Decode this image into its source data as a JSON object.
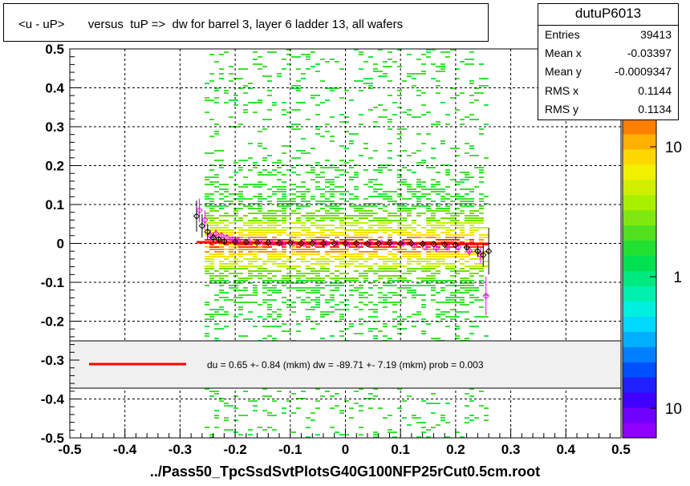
{
  "title": "<u - uP>       versus  tuP =>  dw for barrel 3, layer 6 ladder 13, all wafers",
  "stats": {
    "name": "dutuP6013",
    "rows": [
      {
        "key": "Entries",
        "value": "39413"
      },
      {
        "key": "Mean x",
        "value": "-0.03397"
      },
      {
        "key": "Mean y",
        "value": "-0.0009347"
      },
      {
        "key": "RMS x",
        "value": "0.1144"
      },
      {
        "key": "RMS y",
        "value": "0.1134"
      }
    ]
  },
  "fit_legend": "du =     0.65 +-  0.84 (mkm) dw =  -89.71 +-  7.19 (mkm) prob = 0.003",
  "x_title": "../Pass50_TpcSsdSvtPlotsG40G100NFP25rCut0.5cm.root",
  "chart_data": {
    "type": "heatmap",
    "xlim": [
      -0.5,
      0.5
    ],
    "ylim": [
      -0.5,
      0.5
    ],
    "x_ticks": [
      "-0.5",
      "-0.4",
      "-0.3",
      "-0.2",
      "-0.1",
      "0",
      "0.1",
      "0.2",
      "0.3",
      "0.4",
      "0.5"
    ],
    "y_ticks": [
      "-0.5",
      "-0.4",
      "-0.3",
      "-0.2",
      "-0.1",
      "0",
      "0.1",
      "0.2",
      "0.3",
      "0.4",
      "0.5"
    ],
    "grid": true,
    "colorbar_labels": [
      "10",
      "1",
      "10"
    ],
    "fit_line": {
      "x": [
        -0.27,
        0.26
      ],
      "y": [
        0.003,
        -0.001
      ],
      "color": "#ff0000"
    },
    "profile_black": {
      "x": [
        -0.27,
        -0.26,
        -0.25,
        -0.24,
        -0.23,
        -0.22,
        -0.2,
        -0.18,
        -0.16,
        -0.14,
        -0.12,
        -0.1,
        -0.08,
        -0.06,
        -0.04,
        -0.02,
        0.0,
        0.02,
        0.04,
        0.06,
        0.08,
        0.1,
        0.12,
        0.14,
        0.16,
        0.18,
        0.2,
        0.22,
        0.24,
        0.25,
        0.26
      ],
      "y": [
        0.07,
        0.045,
        0.03,
        0.015,
        0.01,
        0.005,
        0.004,
        0.003,
        0.002,
        0.002,
        0.001,
        0.001,
        0.0,
        0.0,
        0.0,
        0.0,
        0.0,
        0.0,
        -0.001,
        0.0,
        0.001,
        0.0,
        0.0,
        -0.001,
        -0.002,
        -0.003,
        -0.004,
        -0.01,
        -0.02,
        -0.03,
        -0.02
      ],
      "err": [
        0.04,
        0.03,
        0.02,
        0.012,
        0.008,
        0.006,
        0.004,
        0.003,
        0.003,
        0.002,
        0.002,
        0.002,
        0.002,
        0.002,
        0.002,
        0.002,
        0.002,
        0.002,
        0.002,
        0.002,
        0.002,
        0.002,
        0.002,
        0.003,
        0.003,
        0.004,
        0.005,
        0.008,
        0.015,
        0.03,
        0.06
      ]
    },
    "profile_magenta": {
      "x": [
        -0.265,
        -0.255,
        -0.245,
        -0.235,
        -0.225,
        -0.215,
        -0.205,
        -0.195,
        -0.175,
        -0.155,
        -0.135,
        -0.115,
        -0.095,
        -0.075,
        -0.055,
        -0.035,
        -0.015,
        0.005,
        0.025,
        0.045,
        0.065,
        0.085,
        0.105,
        0.125,
        0.145,
        0.165,
        0.185,
        0.205,
        0.225,
        0.245,
        0.255
      ],
      "y": [
        0.085,
        0.06,
        0.02,
        0.025,
        0.02,
        0.015,
        0.01,
        0.008,
        0.005,
        0.003,
        0.002,
        0.0,
        0.0,
        -0.002,
        0.0,
        0.0,
        0.0,
        -0.002,
        -0.005,
        0.0,
        0.002,
        -0.002,
        0.0,
        -0.005,
        -0.01,
        -0.012,
        -0.01,
        -0.01,
        -0.02,
        -0.03,
        -0.135
      ],
      "err": [
        0.03,
        0.025,
        0.015,
        0.012,
        0.01,
        0.008,
        0.006,
        0.005,
        0.004,
        0.003,
        0.003,
        0.003,
        0.003,
        0.003,
        0.003,
        0.003,
        0.003,
        0.003,
        0.003,
        0.003,
        0.003,
        0.003,
        0.003,
        0.004,
        0.004,
        0.005,
        0.006,
        0.008,
        0.012,
        0.02,
        0.05
      ]
    }
  }
}
